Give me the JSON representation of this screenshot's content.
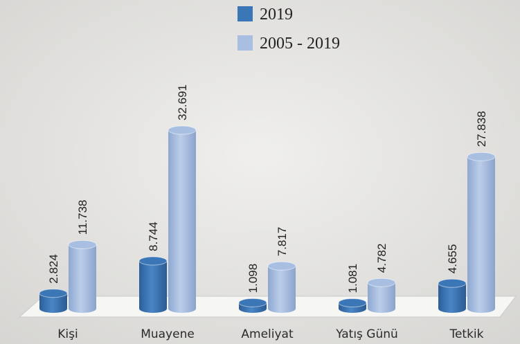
{
  "chart_data": {
    "type": "bar",
    "categories": [
      "Kişi",
      "Muayene",
      "Ameliyat",
      "Yatış Günü",
      "Tetkik"
    ],
    "series": [
      {
        "name": "2019",
        "color": "#3b76b6",
        "values": [
          2824,
          8744,
          1098,
          1081,
          4655
        ],
        "value_labels": [
          "2.824",
          "8.744",
          "1.098",
          "1.081",
          "4.655"
        ]
      },
      {
        "name": "2005 - 2019",
        "color": "#a8bfe2",
        "values": [
          11738,
          32691,
          7817,
          4782,
          27838
        ],
        "value_labels": [
          "11.738",
          "32.691",
          "7.817",
          "4.782",
          "27.838"
        ]
      }
    ]
  }
}
